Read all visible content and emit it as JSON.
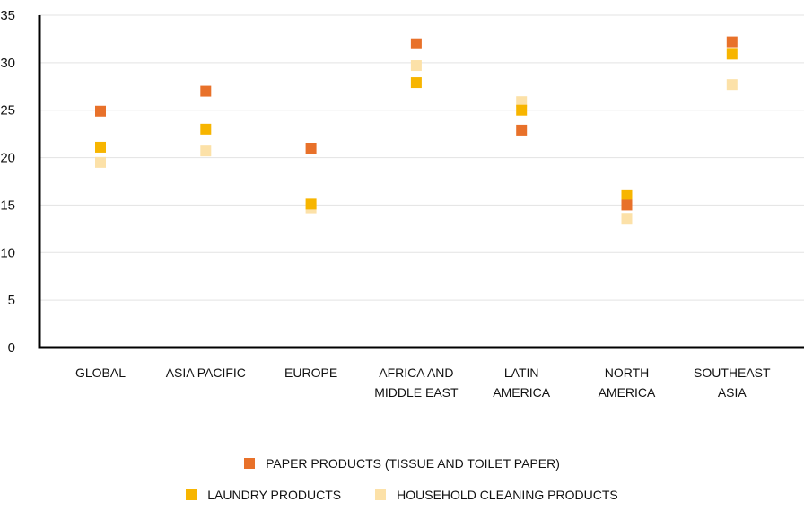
{
  "chart_data": {
    "type": "scatter",
    "title": "",
    "xlabel": "",
    "ylabel": "",
    "categories": [
      "GLOBAL",
      "ASIA PACIFIC",
      "EUROPE",
      "AFRICA AND\nMIDDLE EAST",
      "LATIN\nAMERICA",
      "NORTH\nAMERICA",
      "SOUTHEAST\nASIA"
    ],
    "ylim": [
      0,
      35
    ],
    "yticks": [
      0,
      5,
      10,
      15,
      20,
      25,
      30,
      35
    ],
    "grid": true,
    "legend_placement": "bottom-center",
    "series": [
      {
        "name": "PAPER PRODUCTS (TISSUE AND TOILET PAPER)",
        "color": "#E8712A",
        "values": [
          24.9,
          27.0,
          21.0,
          32.0,
          22.9,
          15.0,
          32.2
        ]
      },
      {
        "name": "LAUNDRY PRODUCTS",
        "color": "#F7B500",
        "values": [
          21.1,
          23.0,
          15.1,
          27.9,
          25.0,
          16.0,
          30.9
        ]
      },
      {
        "name": "HOUSEHOLD CLEANING PRODUCTS",
        "color": "#FCE1A8",
        "values": [
          19.5,
          20.7,
          14.7,
          29.7,
          25.9,
          13.6,
          27.7
        ]
      }
    ]
  }
}
